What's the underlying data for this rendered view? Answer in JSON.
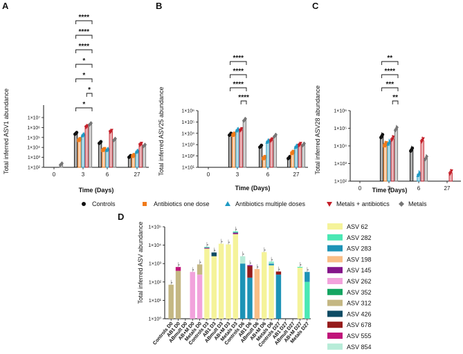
{
  "figure": {
    "panels": [
      "A",
      "B",
      "C",
      "D"
    ]
  },
  "legend_groups": [
    {
      "name": "Controls",
      "color": "#111111",
      "marker": "circle"
    },
    {
      "name": "Antibiotics one dose",
      "color": "#f07a1a",
      "marker": "square"
    },
    {
      "name": "Antibiotics multiple doses",
      "color": "#1e9ac4",
      "marker": "triangle"
    },
    {
      "name": "Metals + antibiotics",
      "color": "#c41e28",
      "marker": "triangle-down"
    },
    {
      "name": "Metals",
      "color": "#777777",
      "marker": "diamond"
    }
  ],
  "chart_data": [
    {
      "panel": "A",
      "type": "bar",
      "scale": "log",
      "xlabel": "Time (Days)",
      "ylabel": "Total inferred ASV1 abundance",
      "ylim_exp": [
        2,
        7
      ],
      "yticks": [
        "1×10²",
        "1×10³",
        "1×10⁴",
        "1×10⁵",
        "1×10⁶",
        "1×10⁷"
      ],
      "categories": [
        "0",
        "3",
        "6",
        "27"
      ],
      "series": [
        {
          "name": "Controls",
          "values": [
            null,
            250000,
            30000,
            1200
          ]
        },
        {
          "name": "Antibiotics one dose",
          "values": [
            null,
            60000,
            6000,
            1500
          ]
        },
        {
          "name": "Antibiotics multiple doses",
          "values": [
            null,
            180000,
            6000,
            4000
          ]
        },
        {
          "name": "Metals + antibiotics",
          "values": [
            null,
            1200000,
            400000,
            20000
          ]
        },
        {
          "name": "Metals",
          "values": [
            200,
            2200000,
            60000,
            15000
          ]
        }
      ],
      "significance": [
        "*",
        "*",
        "*",
        "*",
        "****",
        "****",
        "****"
      ]
    },
    {
      "panel": "B",
      "type": "bar",
      "scale": "log",
      "xlabel": "Time (Days)",
      "ylabel": "Total inferred ASV25 abundance",
      "ylim_exp": [
        1,
        6
      ],
      "yticks": [
        "1×10¹",
        "1×10²",
        "1×10³",
        "1×10⁴",
        "1×10⁵",
        "1×10⁶"
      ],
      "categories": [
        "0",
        "3",
        "6",
        "27"
      ],
      "series": [
        {
          "name": "Controls",
          "values": [
            null,
            8000,
            700,
            70
          ]
        },
        {
          "name": "Antibiotics one dose",
          "values": [
            null,
            8000,
            70,
            200
          ]
        },
        {
          "name": "Antibiotics multiple doses",
          "values": [
            null,
            20000,
            2000,
            700
          ]
        },
        {
          "name": "Metals + antibiotics",
          "values": [
            null,
            20000,
            2500,
            1000
          ]
        },
        {
          "name": "Metals",
          "values": [
            null,
            150000,
            6000,
            1000
          ]
        }
      ],
      "significance": [
        "****",
        "****",
        "****",
        "****"
      ]
    },
    {
      "panel": "C",
      "type": "bar",
      "scale": "log",
      "xlabel": "Time (Days)",
      "ylabel": "Total inferred ASV28 abundance",
      "ylim_exp": [
        2,
        6
      ],
      "yticks": [
        "1×10²",
        "1×10³",
        "1×10⁴",
        "1×10⁵",
        "1×10⁶"
      ],
      "categories": [
        "0",
        "3",
        "6",
        "27"
      ],
      "series": [
        {
          "name": "Controls",
          "values": [
            null,
            35000,
            6000,
            null
          ]
        },
        {
          "name": "Antibiotics one dose",
          "values": [
            null,
            12000,
            null,
            null
          ]
        },
        {
          "name": "Antibiotics multiple doses",
          "values": [
            null,
            15000,
            250,
            null
          ]
        },
        {
          "name": "Metals + antibiotics",
          "values": [
            null,
            25000,
            20000,
            300
          ]
        },
        {
          "name": "Metals",
          "values": [
            null,
            90000,
            2000,
            null
          ]
        }
      ],
      "significance": [
        "**",
        "***",
        "****",
        "**"
      ]
    },
    {
      "panel": "D",
      "type": "bar",
      "stacked": true,
      "scale": "log",
      "ylabel": "Total inferred ASV abundance",
      "ylim_exp": [
        0,
        5
      ],
      "yticks": [
        "1×10⁰",
        "1×10¹",
        "1×10²",
        "1×10³",
        "1×10⁴",
        "1×10⁵"
      ],
      "categories": [
        "Controls D0",
        "AB1 D0",
        "ABmult D0",
        "AB+M D0",
        "Metals D0",
        "Controls D3",
        "AB1 D3",
        "ABmult D3",
        "AB+M D3",
        "Metals D3",
        "Controls D6",
        "AB1 D6",
        "ABmult D6",
        "AB+M D6",
        "Metals D6",
        "Controls D27",
        "AB1 D27",
        "ABmult D27",
        "AB+M D27",
        "Metals D27"
      ],
      "legend": [
        {
          "name": "ASV 62",
          "color": "#f5f39a"
        },
        {
          "name": "ASV 282",
          "color": "#4ae8b4"
        },
        {
          "name": "ASV 283",
          "color": "#1d93b6"
        },
        {
          "name": "ASV 198",
          "color": "#f9be86"
        },
        {
          "name": "ASV 145",
          "color": "#85158a"
        },
        {
          "name": "ASV 262",
          "color": "#f2a2dc"
        },
        {
          "name": "ASV 352",
          "color": "#14a561"
        },
        {
          "name": "ASV 312",
          "color": "#c4b783"
        },
        {
          "name": "ASV 426",
          "color": "#0d4b64"
        },
        {
          "name": "ASV 678",
          "color": "#961c1c"
        },
        {
          "name": "ASV 555",
          "color": "#c0147a"
        },
        {
          "name": "ASV 854",
          "color": "#b7ecd8"
        }
      ],
      "stacks": [
        {
          "category": "Controls D0",
          "parts": [
            [
              "ASV 312",
              70
            ]
          ]
        },
        {
          "category": "AB1 D0",
          "parts": [
            [
              "ASV 312",
              400
            ],
            [
              "ASV 555",
              250
            ]
          ]
        },
        {
          "category": "ABmult D0",
          "parts": []
        },
        {
          "category": "AB+M D0",
          "parts": [
            [
              "ASV 262",
              350
            ]
          ]
        },
        {
          "category": "Metals D0",
          "parts": [
            [
              "ASV 262",
              250
            ],
            [
              "ASV 312",
              650
            ]
          ]
        },
        {
          "category": "Controls D3",
          "parts": [
            [
              "ASV 62",
              6500
            ],
            [
              "ASV 145",
              800
            ],
            [
              "ASV 282",
              800
            ]
          ]
        },
        {
          "category": "AB1 D3",
          "parts": [
            [
              "ASV 62",
              2500
            ],
            [
              "ASV 426",
              1500
            ]
          ]
        },
        {
          "category": "ABmult D3",
          "parts": [
            [
              "ASV 62",
              12000
            ]
          ]
        },
        {
          "category": "AB+M D3",
          "parts": [
            [
              "ASV 62",
              11000
            ]
          ]
        },
        {
          "category": "Metals D3",
          "parts": [
            [
              "ASV 62",
              40000
            ],
            [
              "ASV 145",
              8000
            ],
            [
              "ASV 282",
              8000
            ]
          ]
        },
        {
          "category": "Controls D6",
          "parts": [
            [
              "ASV 283",
              1000
            ],
            [
              "ASV 854",
              1500
            ]
          ]
        },
        {
          "category": "AB1 D6",
          "parts": [
            [
              "ASV 283",
              170
            ],
            [
              "ASV 678",
              550
            ],
            [
              "ASV 145",
              100
            ]
          ]
        },
        {
          "category": "ABmult D6",
          "parts": [
            [
              "ASV 198",
              500
            ]
          ]
        },
        {
          "category": "AB+M D6",
          "parts": [
            [
              "ASV 62",
              4200
            ]
          ]
        },
        {
          "category": "Metals D6",
          "parts": [
            [
              "ASV 62",
              800
            ],
            [
              "ASV 283",
              200
            ],
            [
              "ASV 854",
              150
            ],
            [
              "ASV 282",
              100
            ]
          ]
        },
        {
          "category": "Controls D27",
          "parts": [
            [
              "ASV 283",
              250
            ],
            [
              "ASV 678",
              120
            ]
          ]
        },
        {
          "category": "AB1 D27",
          "parts": []
        },
        {
          "category": "ABmult D27",
          "parts": []
        },
        {
          "category": "AB+M D27",
          "parts": [
            [
              "ASV 62",
              600
            ],
            [
              "ASV 282",
              60
            ]
          ]
        },
        {
          "category": "Metals D27",
          "parts": [
            [
              "ASV 282",
              100
            ],
            [
              "ASV 283",
              250
            ]
          ]
        }
      ]
    }
  ]
}
